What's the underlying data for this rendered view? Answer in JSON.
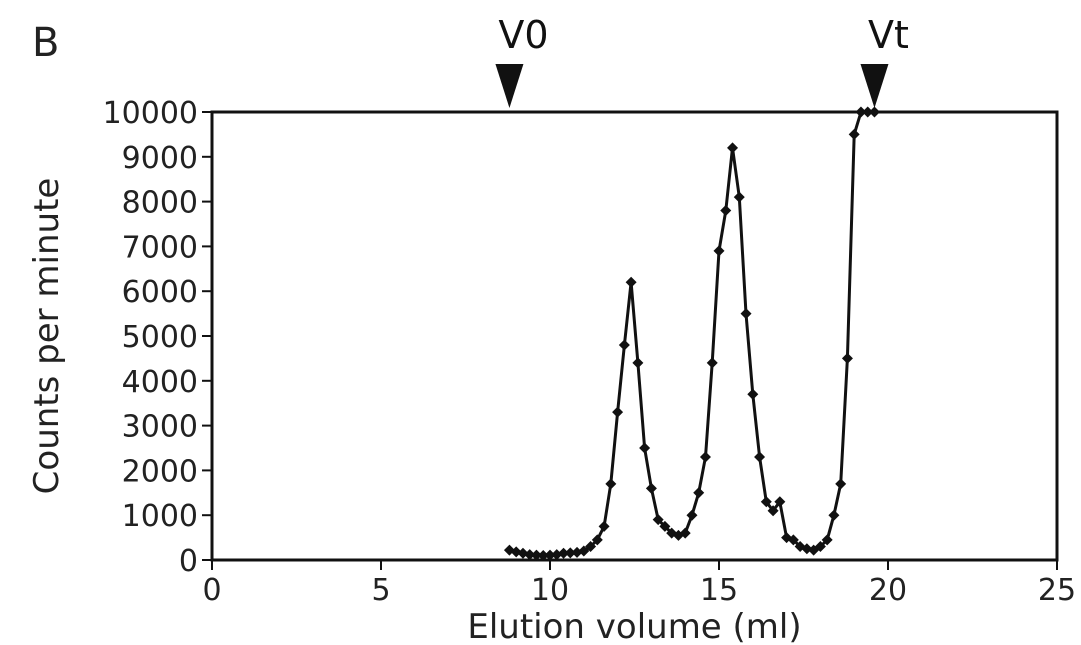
{
  "panel_label": "B",
  "chart_data": {
    "type": "line",
    "title": "",
    "xlabel": "Elution volume (ml)",
    "ylabel": "Counts per minute",
    "xlim": [
      0,
      25
    ],
    "ylim": [
      0,
      10000
    ],
    "x_ticks": [
      0,
      5,
      10,
      15,
      20,
      25
    ],
    "y_ticks": [
      0,
      1000,
      2000,
      3000,
      4000,
      5000,
      6000,
      7000,
      8000,
      9000,
      10000
    ],
    "grid": false,
    "legend": "none",
    "markers": [
      {
        "label": "V0",
        "x": 8.8
      },
      {
        "label": "Vt",
        "x": 19.6
      }
    ],
    "series": [
      {
        "color": "#111111",
        "x": [
          8.8,
          9.0,
          9.2,
          9.4,
          9.6,
          9.8,
          10.0,
          10.2,
          10.4,
          10.6,
          10.8,
          11.0,
          11.2,
          11.4,
          11.6,
          11.8,
          12.0,
          12.2,
          12.4,
          12.6,
          12.8,
          13.0,
          13.2,
          13.4,
          13.6,
          13.8,
          14.0,
          14.2,
          14.4,
          14.6,
          14.8,
          15.0,
          15.2,
          15.4,
          15.6,
          15.8,
          16.0,
          16.2,
          16.4,
          16.6,
          16.8,
          17.0,
          17.2,
          17.4,
          17.6,
          17.8,
          18.0,
          18.2,
          18.4,
          18.6,
          18.8,
          19.0,
          19.2,
          19.4,
          19.6
        ],
        "y": [
          220,
          180,
          150,
          120,
          110,
          100,
          110,
          120,
          150,
          160,
          170,
          200,
          300,
          450,
          750,
          1700,
          3300,
          4800,
          6200,
          4400,
          2500,
          1600,
          900,
          750,
          600,
          550,
          600,
          1000,
          1500,
          2300,
          4400,
          6900,
          7800,
          9200,
          8100,
          5500,
          3700,
          2300,
          1300,
          1100,
          1300,
          500,
          450,
          300,
          250,
          220,
          300,
          450,
          1000,
          1700,
          4500,
          9500,
          10000,
          10000,
          10000
        ]
      }
    ]
  }
}
